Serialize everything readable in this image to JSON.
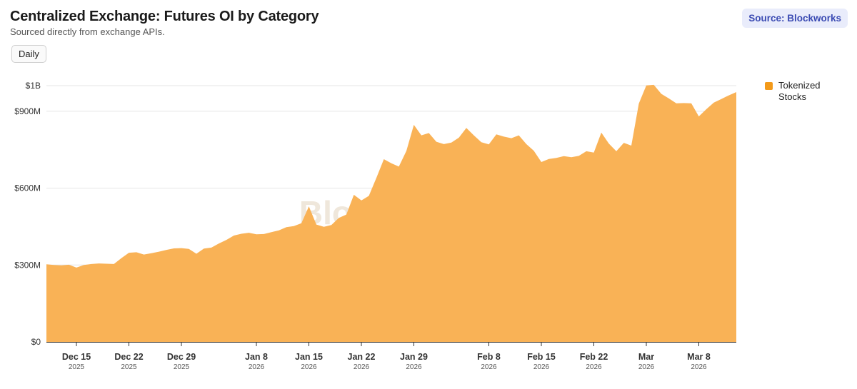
{
  "header": {
    "title": "Centralized Exchange: Futures OI by Category",
    "subtitle": "Sourced directly from exchange APIs.",
    "source": "Source: Blockworks"
  },
  "controls": {
    "interval_label": "Daily"
  },
  "watermark": "Blockworks",
  "colors": {
    "area": "#f9b256",
    "legend": "#f39a1a",
    "grid": "#e6e6e6",
    "axis": "#333333"
  },
  "chart_data": {
    "type": "area",
    "title": "Centralized Exchange: Futures OI by Category",
    "subtitle": "Sourced directly from exchange APIs.",
    "xlabel": "",
    "ylabel": "",
    "grid": true,
    "legend_position": "right",
    "x_range": [
      "2025-12-11",
      "2026-03-13"
    ],
    "ylim": [
      0,
      1000000000
    ],
    "y_ticks": [
      {
        "value": 0,
        "label": "$0"
      },
      {
        "value": 300000000,
        "label": "$300M"
      },
      {
        "value": 600000000,
        "label": "$600M"
      },
      {
        "value": 900000000,
        "label": "$900M"
      },
      {
        "value": 1000000000,
        "label": "$1B"
      }
    ],
    "x_ticks": [
      {
        "date": "2025-12-15",
        "label": "Dec 15",
        "year": "2025"
      },
      {
        "date": "2025-12-22",
        "label": "Dec 22",
        "year": "2025"
      },
      {
        "date": "2025-12-29",
        "label": "Dec 29",
        "year": "2025"
      },
      {
        "date": "2026-01-08",
        "label": "Jan 8",
        "year": "2026"
      },
      {
        "date": "2026-01-15",
        "label": "Jan 15",
        "year": "2026"
      },
      {
        "date": "2026-01-22",
        "label": "Jan 22",
        "year": "2026"
      },
      {
        "date": "2026-01-29",
        "label": "Jan 29",
        "year": "2026"
      },
      {
        "date": "2026-02-08",
        "label": "Feb 8",
        "year": "2026"
      },
      {
        "date": "2026-02-15",
        "label": "Feb 15",
        "year": "2026"
      },
      {
        "date": "2026-02-22",
        "label": "Feb 22",
        "year": "2026"
      },
      {
        "date": "2026-03-01",
        "label": "Mar",
        "year": "2026"
      },
      {
        "date": "2026-03-08",
        "label": "Mar 8",
        "year": "2026"
      }
    ],
    "series": [
      {
        "name": "Tokenized Stocks",
        "points": [
          [
            "2025-12-11",
            303000000
          ],
          [
            "2025-12-12",
            300000000
          ],
          [
            "2025-12-13",
            299000000
          ],
          [
            "2025-12-14",
            301000000
          ],
          [
            "2025-12-15",
            290000000
          ],
          [
            "2025-12-16",
            300000000
          ],
          [
            "2025-12-17",
            304000000
          ],
          [
            "2025-12-18",
            306000000
          ],
          [
            "2025-12-19",
            305000000
          ],
          [
            "2025-12-20",
            304000000
          ],
          [
            "2025-12-21",
            327000000
          ],
          [
            "2025-12-22",
            348000000
          ],
          [
            "2025-12-23",
            350000000
          ],
          [
            "2025-12-24",
            341000000
          ],
          [
            "2025-12-25",
            346000000
          ],
          [
            "2025-12-26",
            352000000
          ],
          [
            "2025-12-27",
            359000000
          ],
          [
            "2025-12-28",
            365000000
          ],
          [
            "2025-12-29",
            366000000
          ],
          [
            "2025-12-30",
            363000000
          ],
          [
            "2025-12-31",
            344000000
          ],
          [
            "2026-01-01",
            364000000
          ],
          [
            "2026-01-02",
            368000000
          ],
          [
            "2026-01-03",
            384000000
          ],
          [
            "2026-01-04",
            398000000
          ],
          [
            "2026-01-05",
            415000000
          ],
          [
            "2026-01-06",
            422000000
          ],
          [
            "2026-01-07",
            426000000
          ],
          [
            "2026-01-08",
            420000000
          ],
          [
            "2026-01-09",
            421000000
          ],
          [
            "2026-01-10",
            428000000
          ],
          [
            "2026-01-11",
            435000000
          ],
          [
            "2026-01-12",
            448000000
          ],
          [
            "2026-01-13",
            452000000
          ],
          [
            "2026-01-14",
            463000000
          ],
          [
            "2026-01-15",
            529000000
          ],
          [
            "2026-01-16",
            458000000
          ],
          [
            "2026-01-17",
            449000000
          ],
          [
            "2026-01-18",
            456000000
          ],
          [
            "2026-01-19",
            484000000
          ],
          [
            "2026-01-20",
            497000000
          ],
          [
            "2026-01-21",
            574000000
          ],
          [
            "2026-01-22",
            552000000
          ],
          [
            "2026-01-23",
            570000000
          ],
          [
            "2026-01-24",
            640000000
          ],
          [
            "2026-01-25",
            713000000
          ],
          [
            "2026-01-26",
            697000000
          ],
          [
            "2026-01-27",
            684000000
          ],
          [
            "2026-01-28",
            745000000
          ],
          [
            "2026-01-29",
            847000000
          ],
          [
            "2026-01-30",
            806000000
          ],
          [
            "2026-01-31",
            815000000
          ],
          [
            "2026-02-01",
            781000000
          ],
          [
            "2026-02-02",
            772000000
          ],
          [
            "2026-02-03",
            778000000
          ],
          [
            "2026-02-04",
            797000000
          ],
          [
            "2026-02-05",
            835000000
          ],
          [
            "2026-02-06",
            806000000
          ],
          [
            "2026-02-07",
            779000000
          ],
          [
            "2026-02-08",
            771000000
          ],
          [
            "2026-02-09",
            810000000
          ],
          [
            "2026-02-10",
            801000000
          ],
          [
            "2026-02-11",
            795000000
          ],
          [
            "2026-02-12",
            806000000
          ],
          [
            "2026-02-13",
            772000000
          ],
          [
            "2026-02-14",
            746000000
          ],
          [
            "2026-02-15",
            702000000
          ],
          [
            "2026-02-16",
            714000000
          ],
          [
            "2026-02-17",
            718000000
          ],
          [
            "2026-02-18",
            725000000
          ],
          [
            "2026-02-19",
            721000000
          ],
          [
            "2026-02-20",
            726000000
          ],
          [
            "2026-02-21",
            744000000
          ],
          [
            "2026-02-22",
            739000000
          ],
          [
            "2026-02-23",
            817000000
          ],
          [
            "2026-02-24",
            774000000
          ],
          [
            "2026-02-25",
            744000000
          ],
          [
            "2026-02-26",
            777000000
          ],
          [
            "2026-02-27",
            766000000
          ],
          [
            "2026-02-28",
            930000000
          ],
          [
            "2026-03-01",
            1001000000
          ],
          [
            "2026-03-02",
            1003000000
          ],
          [
            "2026-03-03",
            968000000
          ],
          [
            "2026-03-04",
            950000000
          ],
          [
            "2026-03-05",
            931000000
          ],
          [
            "2026-03-06",
            932000000
          ],
          [
            "2026-03-07",
            931000000
          ],
          [
            "2026-03-08",
            880000000
          ],
          [
            "2026-03-09",
            908000000
          ],
          [
            "2026-03-10",
            934000000
          ],
          [
            "2026-03-11",
            948000000
          ],
          [
            "2026-03-12",
            962000000
          ],
          [
            "2026-03-13",
            975000000
          ]
        ]
      }
    ]
  }
}
